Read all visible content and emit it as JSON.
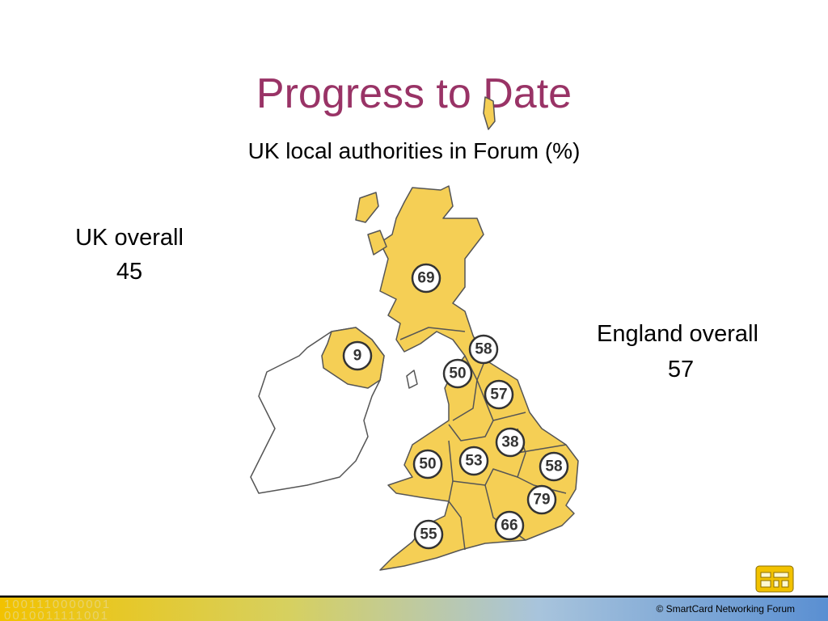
{
  "title": "Progress to Date",
  "subtitle": "UK local authorities in Forum (%)",
  "uk_overall": {
    "label": "UK overall",
    "value": 45
  },
  "england_overall": {
    "label": "England overall",
    "value": 57
  },
  "region_values": [
    69,
    9,
    58,
    50,
    57,
    38,
    50,
    53,
    58,
    79,
    66,
    55
  ],
  "footer": {
    "copyright": "© SmartCard Networking Forum",
    "binary": [
      "1001110000001",
      "0010011111001"
    ]
  }
}
